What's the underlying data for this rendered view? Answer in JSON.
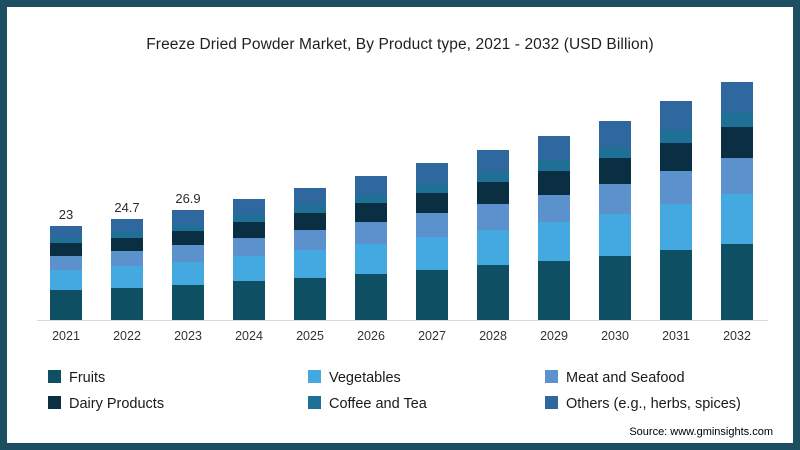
{
  "frame": {
    "border_color": "#1D4F63",
    "background": "#FFFFFF"
  },
  "title": "Freeze Dried Powder Market, By Product type, 2021 - 2032 (USD Billion)",
  "source": "Source: www.gminsights.com",
  "legend": {
    "items": [
      {
        "label": "Fruits",
        "color": "#0E4F63"
      },
      {
        "label": "Vegetables",
        "color": "#44A9E0"
      },
      {
        "label": "Meat and Seafood",
        "color": "#5B92CE"
      },
      {
        "label": "Dairy Products",
        "color": "#0A2F42"
      },
      {
        "label": "Coffee and Tea",
        "color": "#1F7096"
      },
      {
        "label": "Others (e.g., herbs, spices)",
        "color": "#2E689E"
      }
    ]
  },
  "chart_data": {
    "type": "bar",
    "stacked": true,
    "title": "Freeze Dried Powder Market, By Product type, 2021 - 2032 (USD Billion)",
    "xlabel": "",
    "ylabel": "USD Billion",
    "ylim": [
      0,
      60
    ],
    "gridlines": false,
    "legend_position": "bottom",
    "categories": [
      "2021",
      "2022",
      "2023",
      "2024",
      "2025",
      "2026",
      "2027",
      "2028",
      "2029",
      "2030",
      "2031",
      "2032"
    ],
    "bar_labels": [
      "23",
      "24.7",
      "26.9",
      "",
      "",
      "",
      "",
      "",
      "",
      "",
      "",
      ""
    ],
    "totals": [
      23,
      24.7,
      26.9,
      29.5,
      32.2,
      35.1,
      38.3,
      41.6,
      44.9,
      48.6,
      53.4,
      58.0
    ],
    "series": [
      {
        "name": "Fruits",
        "color": "#0E4F63",
        "values": [
          7.4,
          7.9,
          8.6,
          9.4,
          10.3,
          11.2,
          12.3,
          13.3,
          14.4,
          15.6,
          17.1,
          18.6
        ]
      },
      {
        "name": "Vegetables",
        "color": "#44A9E0",
        "values": [
          4.8,
          5.2,
          5.6,
          6.2,
          6.8,
          7.4,
          8.0,
          8.7,
          9.4,
          10.2,
          11.2,
          12.2
        ]
      },
      {
        "name": "Meat and Seafood",
        "color": "#5B92CE",
        "values": [
          3.5,
          3.7,
          4.0,
          4.4,
          4.8,
          5.3,
          5.7,
          6.2,
          6.7,
          7.3,
          8.0,
          8.7
        ]
      },
      {
        "name": "Dairy Products",
        "color": "#0A2F42",
        "values": [
          3.0,
          3.2,
          3.5,
          3.8,
          4.2,
          4.6,
          5.0,
          5.4,
          5.8,
          6.3,
          6.9,
          7.5
        ]
      },
      {
        "name": "Coffee and Tea",
        "color": "#1F7096",
        "values": [
          1.4,
          1.5,
          1.6,
          1.8,
          1.9,
          2.1,
          2.3,
          2.5,
          2.7,
          2.9,
          3.2,
          3.5
        ]
      },
      {
        "name": "Others (e.g., herbs, spices)",
        "color": "#2E689E",
        "values": [
          2.9,
          3.2,
          3.6,
          3.9,
          4.2,
          4.5,
          5.0,
          5.5,
          5.9,
          6.3,
          7.0,
          7.5
        ]
      }
    ]
  }
}
